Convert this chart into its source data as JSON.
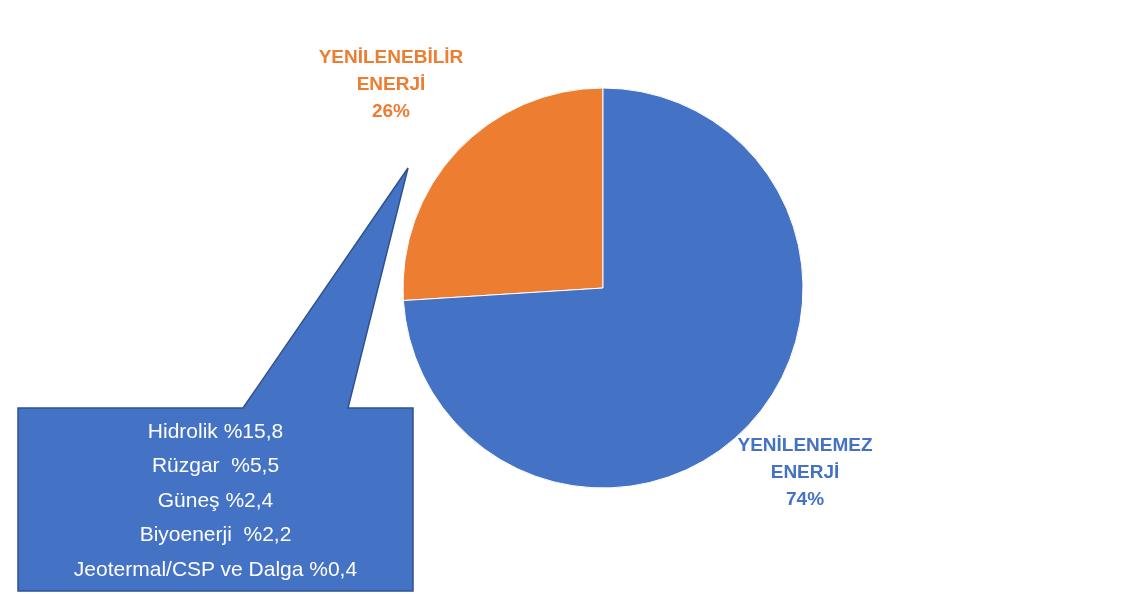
{
  "chart_data": {
    "type": "pie",
    "categories": [
      "YENİLENEBİLİR ENERJİ",
      "YENİLENEMEZ ENERJİ"
    ],
    "values": [
      26,
      74
    ],
    "colors": [
      "#ed7d31",
      "#4472c4"
    ],
    "value_labels": [
      "26%",
      "74%"
    ],
    "annotations": [
      "Hidrolik %15,8",
      "Rüzgar  %5,5",
      "Güneş %2,4",
      "Biyoenerji  %2,2",
      "Jeotermal/CSP ve Dalga %0,4"
    ],
    "legend": false
  }
}
